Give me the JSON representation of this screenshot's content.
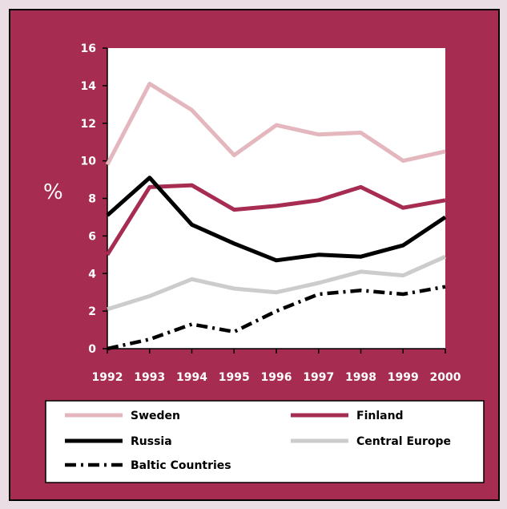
{
  "chart_data": {
    "type": "line",
    "title": "",
    "xlabel": "",
    "ylabel": "%",
    "x": [
      "1992",
      "1993",
      "1994",
      "1995",
      "1996",
      "1997",
      "1998",
      "1999",
      "2000"
    ],
    "ylim": [
      0,
      16
    ],
    "yticks": [
      0,
      2,
      4,
      6,
      8,
      10,
      12,
      14,
      16
    ],
    "grid": false,
    "legend_position": "bottom",
    "series": [
      {
        "name": "Sweden",
        "color": "#e3b7bd",
        "dash": "solid",
        "values": [
          9.8,
          14.1,
          12.7,
          10.3,
          11.9,
          11.4,
          11.5,
          10.0,
          10.5
        ]
      },
      {
        "name": "Finland",
        "color": "#a62c52",
        "dash": "solid",
        "values": [
          5.0,
          8.6,
          8.7,
          7.4,
          7.6,
          7.9,
          8.6,
          7.5,
          7.9
        ]
      },
      {
        "name": "Russia",
        "color": "#000000",
        "dash": "solid",
        "values": [
          7.1,
          9.1,
          6.6,
          5.6,
          4.7,
          5.0,
          4.9,
          5.5,
          7.0
        ]
      },
      {
        "name": "Central Europe",
        "color": "#cccccc",
        "dash": "solid",
        "values": [
          2.1,
          2.8,
          3.7,
          3.2,
          3.0,
          3.5,
          4.1,
          3.9,
          4.9
        ]
      },
      {
        "name": "Baltic Countries",
        "color": "#000000",
        "dash": "dashdot",
        "values": [
          0.0,
          0.5,
          1.3,
          0.9,
          2.0,
          2.9,
          3.1,
          2.9,
          3.3
        ]
      }
    ]
  }
}
